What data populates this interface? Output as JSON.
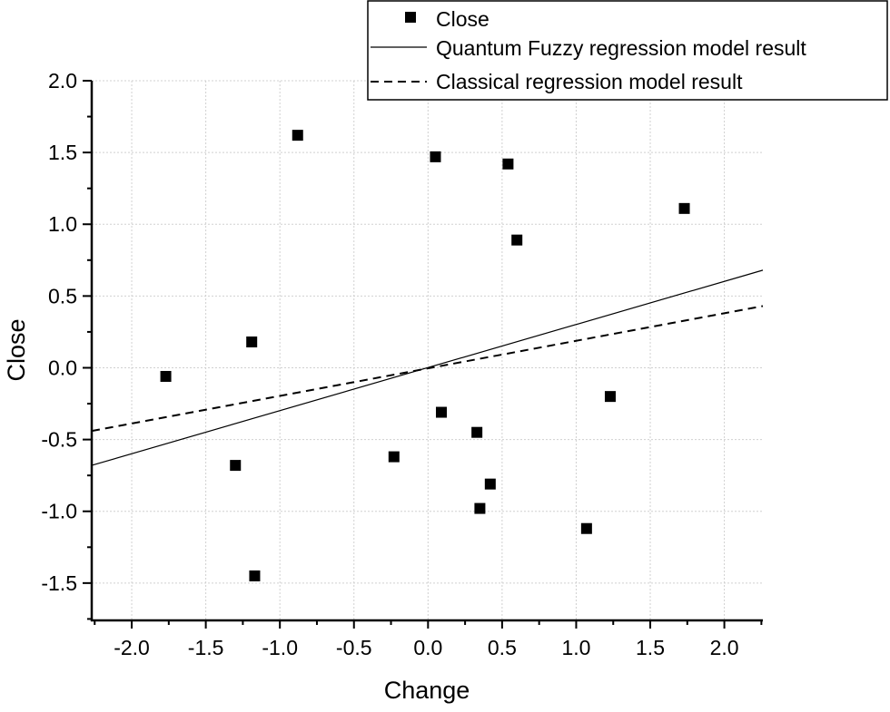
{
  "chart_data": {
    "type": "scatter",
    "title": "",
    "xlabel": "Change",
    "ylabel": "Close",
    "xlim": [
      -2.27,
      2.26
    ],
    "ylim": [
      -1.76,
      2.0
    ],
    "grid": true,
    "legend_position": "top-right",
    "x_ticks": [
      "-2.0",
      "-1.5",
      "-1.0",
      "-0.5",
      "0.0",
      "0.5",
      "1.0",
      "1.5",
      "2.0"
    ],
    "y_ticks": [
      "-1.5",
      "-1.0",
      "-0.5",
      "0.0",
      "0.5",
      "1.0",
      "1.5",
      "2.0"
    ],
    "series": [
      {
        "name": "Close",
        "type": "scatter",
        "marker": "square",
        "color": "#000000",
        "points": [
          [
            -1.77,
            -0.06
          ],
          [
            -1.19,
            0.18
          ],
          [
            -1.3,
            -0.68
          ],
          [
            -1.17,
            -1.45
          ],
          [
            -0.88,
            1.62
          ],
          [
            -0.23,
            -0.62
          ],
          [
            0.05,
            1.47
          ],
          [
            0.09,
            -0.31
          ],
          [
            0.54,
            1.42
          ],
          [
            0.6,
            0.89
          ],
          [
            0.33,
            -0.45
          ],
          [
            0.35,
            -0.98
          ],
          [
            0.42,
            -0.81
          ],
          [
            1.07,
            -1.12
          ],
          [
            1.23,
            -0.2
          ],
          [
            1.73,
            1.11
          ]
        ]
      },
      {
        "name": "Quantum Fuzzy regression model result",
        "type": "line",
        "style": "solid",
        "color": "#000000",
        "points": [
          [
            -2.27,
            -0.68
          ],
          [
            2.26,
            0.68
          ]
        ]
      },
      {
        "name": "Classical regression model result",
        "type": "line",
        "style": "dashed",
        "color": "#000000",
        "points": [
          [
            -2.27,
            -0.44
          ],
          [
            2.26,
            0.43
          ]
        ]
      }
    ]
  }
}
